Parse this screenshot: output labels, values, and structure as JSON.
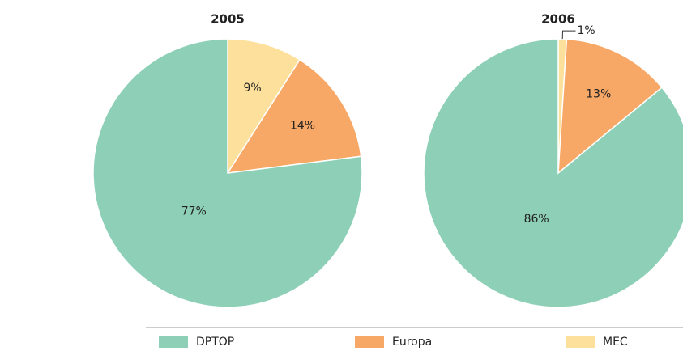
{
  "chart_data": [
    {
      "type": "pie",
      "title": "2005",
      "categories": [
        "DPTOP",
        "Europa",
        "MEC"
      ],
      "values": [
        77,
        14,
        9
      ],
      "value_labels": [
        "77%",
        "14%",
        "9%"
      ],
      "colors": [
        "#8dd0b7",
        "#f7a866",
        "#fde09b"
      ]
    },
    {
      "type": "pie",
      "title": "2006",
      "categories": [
        "DPTOP",
        "Europa",
        "MEC"
      ],
      "values": [
        86,
        13,
        1
      ],
      "value_labels": [
        "86%",
        "13%",
        "1%"
      ],
      "colors": [
        "#8dd0b7",
        "#f7a866",
        "#fde09b"
      ]
    }
  ]
}
